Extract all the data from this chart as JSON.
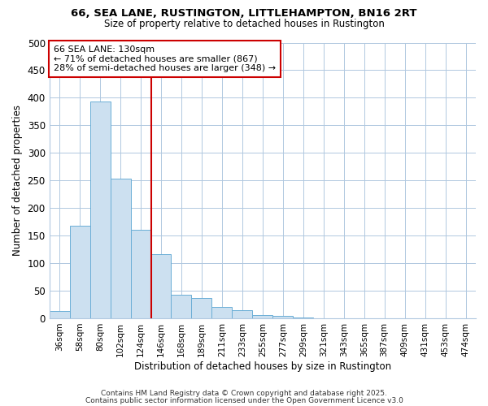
{
  "title1": "66, SEA LANE, RUSTINGTON, LITTLEHAMPTON, BN16 2RT",
  "title2": "Size of property relative to detached houses in Rustington",
  "xlabel": "Distribution of detached houses by size in Rustington",
  "ylabel": "Number of detached properties",
  "bar_labels": [
    "36sqm",
    "58sqm",
    "80sqm",
    "102sqm",
    "124sqm",
    "146sqm",
    "168sqm",
    "189sqm",
    "211sqm",
    "233sqm",
    "255sqm",
    "277sqm",
    "299sqm",
    "321sqm",
    "343sqm",
    "365sqm",
    "387sqm",
    "409sqm",
    "431sqm",
    "453sqm",
    "474sqm"
  ],
  "bar_values": [
    13,
    168,
    393,
    253,
    160,
    116,
    43,
    37,
    20,
    15,
    6,
    5,
    2,
    0,
    0,
    0,
    0,
    0,
    0,
    0,
    0
  ],
  "bar_color": "#cce0f0",
  "bar_edge_color": "#6baed6",
  "vline_color": "#cc0000",
  "annotation_text": "66 SEA LANE: 130sqm\n← 71% of detached houses are smaller (867)\n28% of semi-detached houses are larger (348) →",
  "annotation_box_color": "#ffffff",
  "annotation_box_edge": "#cc0000",
  "ylim": [
    0,
    500
  ],
  "yticks": [
    0,
    50,
    100,
    150,
    200,
    250,
    300,
    350,
    400,
    450,
    500
  ],
  "bg_color": "#ffffff",
  "grid_color": "#b0c8e0",
  "footnote1": "Contains HM Land Registry data © Crown copyright and database right 2025.",
  "footnote2": "Contains public sector information licensed under the Open Government Licence v3.0"
}
